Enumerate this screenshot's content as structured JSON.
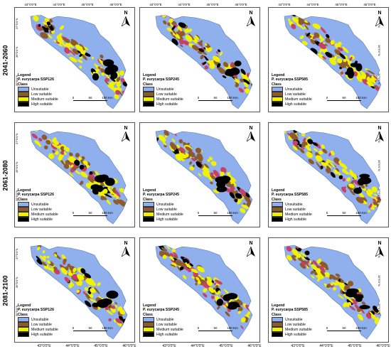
{
  "figure": {
    "periods": [
      "2041-2060",
      "2061-2080",
      "2081-2100"
    ],
    "scenarios": [
      "P. eurycarpa SSP126",
      "P. eurycarpa SSP245",
      "P. eurycarpa SSP585"
    ],
    "top_longitudes": [
      "43°0'0\"E",
      "44°0'0\"E",
      "45°0'0\"E",
      "46°0'0\"E"
    ],
    "bottom_longitudes": [
      "43°0'0\"E",
      "44°0'0\"E",
      "45°0'0\"E",
      "46°0'0\"E",
      "43°0'0\"E",
      "44°0'0\"E",
      "45°0'0\"E",
      "46°0'0\"E",
      "43°0'0\"E",
      "44°0'0\"E",
      "45°0'0\"E",
      "46°0'0\"E"
    ],
    "left_latitudes": [
      "37°0'0\"N",
      "36°0'0\"N",
      "35°0'0\"N"
    ],
    "right_latitudes": [
      "37°0'0\"N",
      "36°0'0\"N",
      "35°0'0\"N"
    ],
    "north_label": "N",
    "legend": {
      "title": "Legend",
      "class_label": "Class",
      "classes": [
        {
          "label": "Unsuitable",
          "color": "#8fb0ec"
        },
        {
          "label": "Low suitable",
          "color": "#8c5a2c"
        },
        {
          "label": "Medium suitable",
          "color": "#f2f200"
        },
        {
          "label": "High suitable",
          "color": "#000000"
        }
      ]
    },
    "scale_bar": {
      "labels": [
        "0",
        "50",
        "100 Km"
      ]
    }
  }
}
